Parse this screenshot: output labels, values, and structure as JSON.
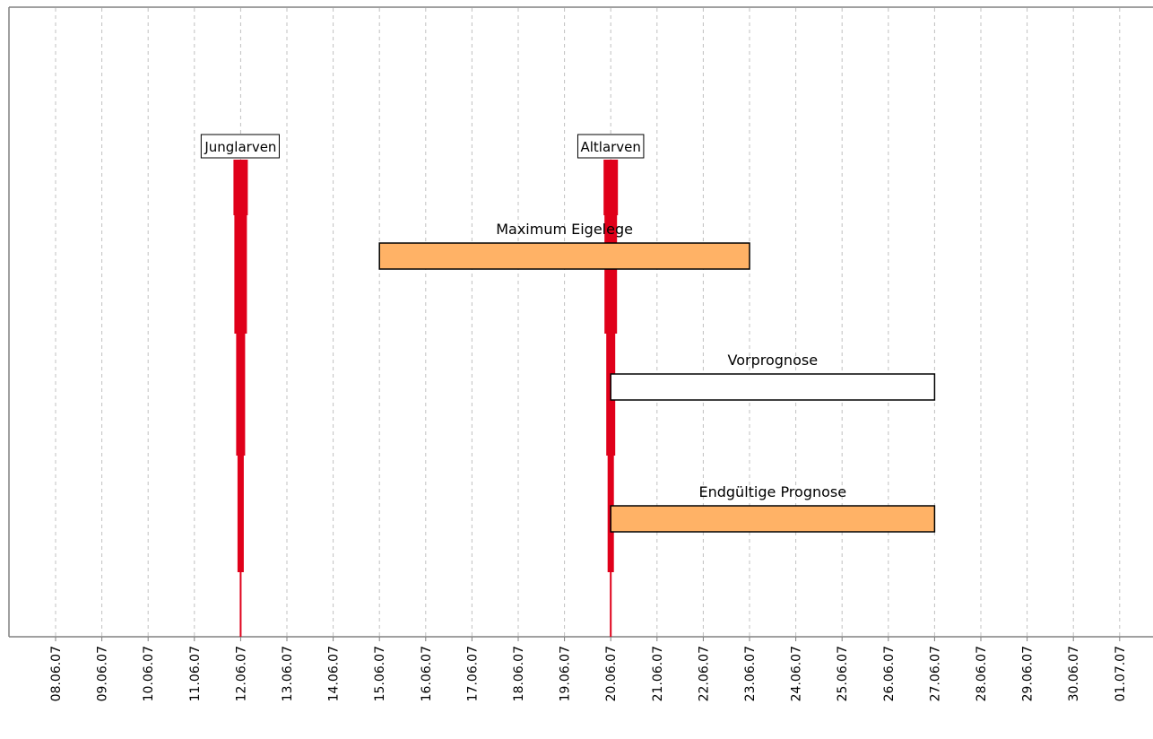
{
  "chart_data": {
    "type": "gantt",
    "x_axis": {
      "type": "date",
      "range": [
        "2007-06-07",
        "2007-07-01"
      ],
      "ticks": [
        "08.06.07",
        "09.06.07",
        "10.06.07",
        "11.06.07",
        "12.06.07",
        "13.06.07",
        "14.06.07",
        "15.06.07",
        "16.06.07",
        "17.06.07",
        "18.06.07",
        "19.06.07",
        "20.06.07",
        "21.06.07",
        "22.06.07",
        "23.06.07",
        "24.06.07",
        "25.06.07",
        "26.06.07",
        "27.06.07",
        "28.06.07",
        "29.06.07",
        "30.06.07",
        "01.07.07"
      ],
      "tick_label_rotation": "vertical",
      "grid": "dashed"
    },
    "bars": [
      {
        "label": "Maximum Eigelege",
        "start": "2007-06-15",
        "end": "2007-06-23",
        "fill": "#ffb266"
      },
      {
        "label": "Vorprognose",
        "start": "2007-06-20",
        "end": "2007-06-27",
        "fill": "#ffffff"
      },
      {
        "label": "Endgültige Prognose",
        "start": "2007-06-20",
        "end": "2007-06-27",
        "fill": "#ffb266"
      }
    ],
    "markers": [
      {
        "label": "Junglarven",
        "date": "2007-06-12",
        "color": "#e0001a",
        "profile": "tapering"
      },
      {
        "label": "Altlarven",
        "date": "2007-06-20",
        "color": "#e0001a",
        "profile": "tapering"
      }
    ],
    "colors": {
      "marker": "#e0001a",
      "bar_orange": "#ffb266",
      "grid": "#c0c0c0",
      "border": "#808080"
    }
  }
}
